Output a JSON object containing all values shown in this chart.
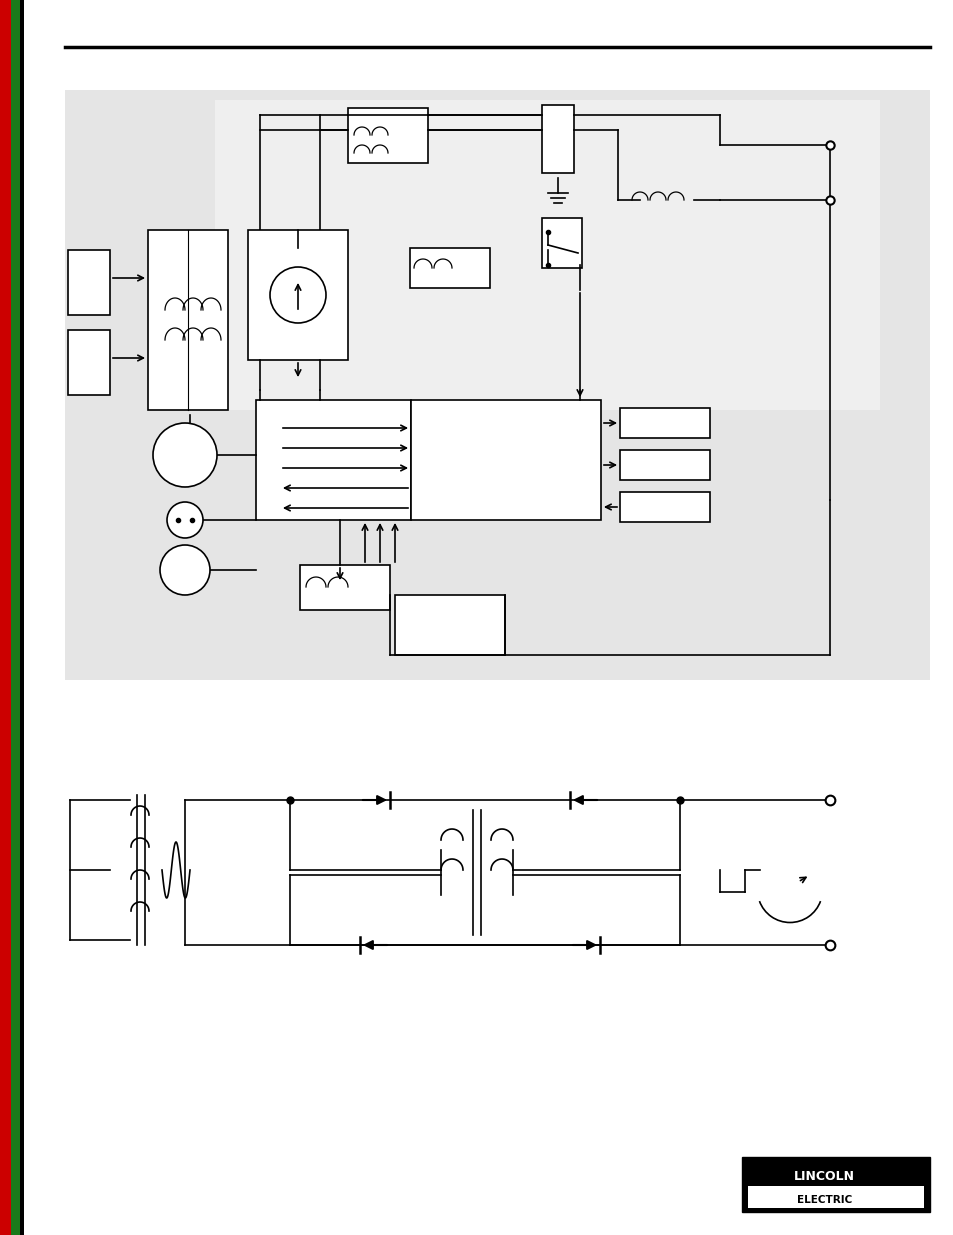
{
  "page_bg": "#ffffff",
  "sidebar_red": "#cc0000",
  "sidebar_green": "#1a7a1a",
  "gray_color": "#e0e0e0",
  "lw": 1.2
}
